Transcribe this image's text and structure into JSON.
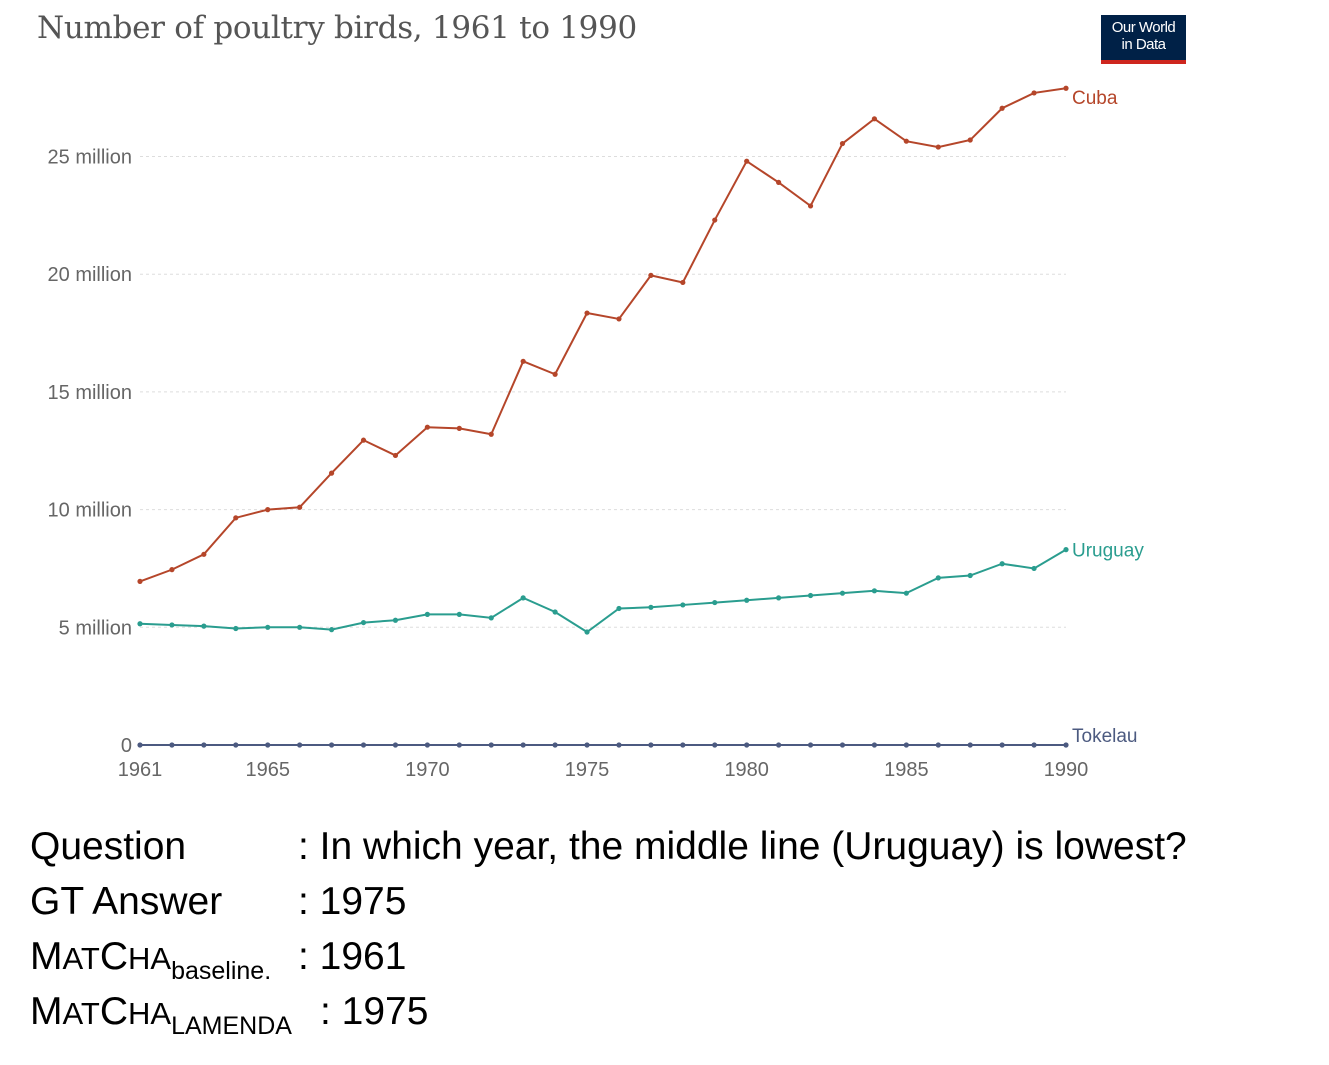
{
  "header": {
    "title": "Number of poultry birds, 1961 to 1990",
    "logo_line1": "Our World",
    "logo_line2": "in Data"
  },
  "colors": {
    "cuba": "#b5462a",
    "uruguay": "#2a9d8f",
    "tokelau": "#4c5a80",
    "grid": "#dddddd",
    "axis_text": "#666666",
    "logo_bg": "#002147",
    "logo_accent": "#ce261e"
  },
  "chart_data": {
    "type": "line",
    "title": "Number of poultry birds, 1961 to 1990",
    "xlabel": "",
    "ylabel": "",
    "x": [
      1961,
      1962,
      1963,
      1964,
      1965,
      1966,
      1967,
      1968,
      1969,
      1970,
      1971,
      1972,
      1973,
      1974,
      1975,
      1976,
      1977,
      1978,
      1979,
      1980,
      1981,
      1982,
      1983,
      1984,
      1985,
      1986,
      1987,
      1988,
      1989,
      1990
    ],
    "x_ticks": [
      1961,
      1965,
      1970,
      1975,
      1980,
      1985,
      1990
    ],
    "y_ticks": [
      0,
      5000000,
      10000000,
      15000000,
      20000000,
      25000000
    ],
    "y_tick_labels": [
      "0",
      "5 million",
      "10 million",
      "15 million",
      "20 million",
      "25 million"
    ],
    "ylim": [
      0,
      27800000
    ],
    "grid": "horizontal-dotted",
    "legend": "line-end labels",
    "series": [
      {
        "name": "Cuba",
        "color": "#b5462a",
        "values": [
          6950000,
          7450000,
          8100000,
          9650000,
          10000000,
          10100000,
          11550000,
          12950000,
          12300000,
          13500000,
          13450000,
          13200000,
          16300000,
          15750000,
          18350000,
          18100000,
          19950000,
          19650000,
          22300000,
          24800000,
          23900000,
          22900000,
          25550000,
          26600000,
          25650000,
          25400000,
          25700000,
          27050000,
          27700000,
          27900000
        ]
      },
      {
        "name": "Uruguay",
        "color": "#2a9d8f",
        "values": [
          5150000,
          5100000,
          5050000,
          4950000,
          5000000,
          5000000,
          4900000,
          5200000,
          5300000,
          5550000,
          5550000,
          5400000,
          6250000,
          5650000,
          4800000,
          5800000,
          5850000,
          5950000,
          6050000,
          6150000,
          6250000,
          6350000,
          6450000,
          6550000,
          6450000,
          7100000,
          7200000,
          7700000,
          7500000,
          8300000
        ]
      },
      {
        "name": "Tokelau",
        "color": "#4c5a80",
        "values": [
          0,
          0,
          0,
          0,
          0,
          0,
          0,
          0,
          0,
          0,
          0,
          0,
          0,
          0,
          0,
          0,
          0,
          0,
          0,
          0,
          0,
          0,
          0,
          0,
          0,
          0,
          0,
          0,
          0,
          0
        ]
      }
    ]
  },
  "qa": {
    "question_label": "Question",
    "question_value": ": In which year, the middle line (Uruguay) is lowest?",
    "gt_label": "GT Answer",
    "gt_value": ": 1975",
    "baseline_label_M": "M",
    "baseline_label_at": "AT",
    "baseline_label_C": "C",
    "baseline_label_ha": "HA",
    "baseline_sub": "baseline.",
    "baseline_value": ": 1961",
    "lamenda_label_M": "M",
    "lamenda_label_at": "AT",
    "lamenda_label_C": "C",
    "lamenda_label_ha": "HA",
    "lamenda_sub": "LAMENDA",
    "lamenda_value": ": 1975"
  }
}
